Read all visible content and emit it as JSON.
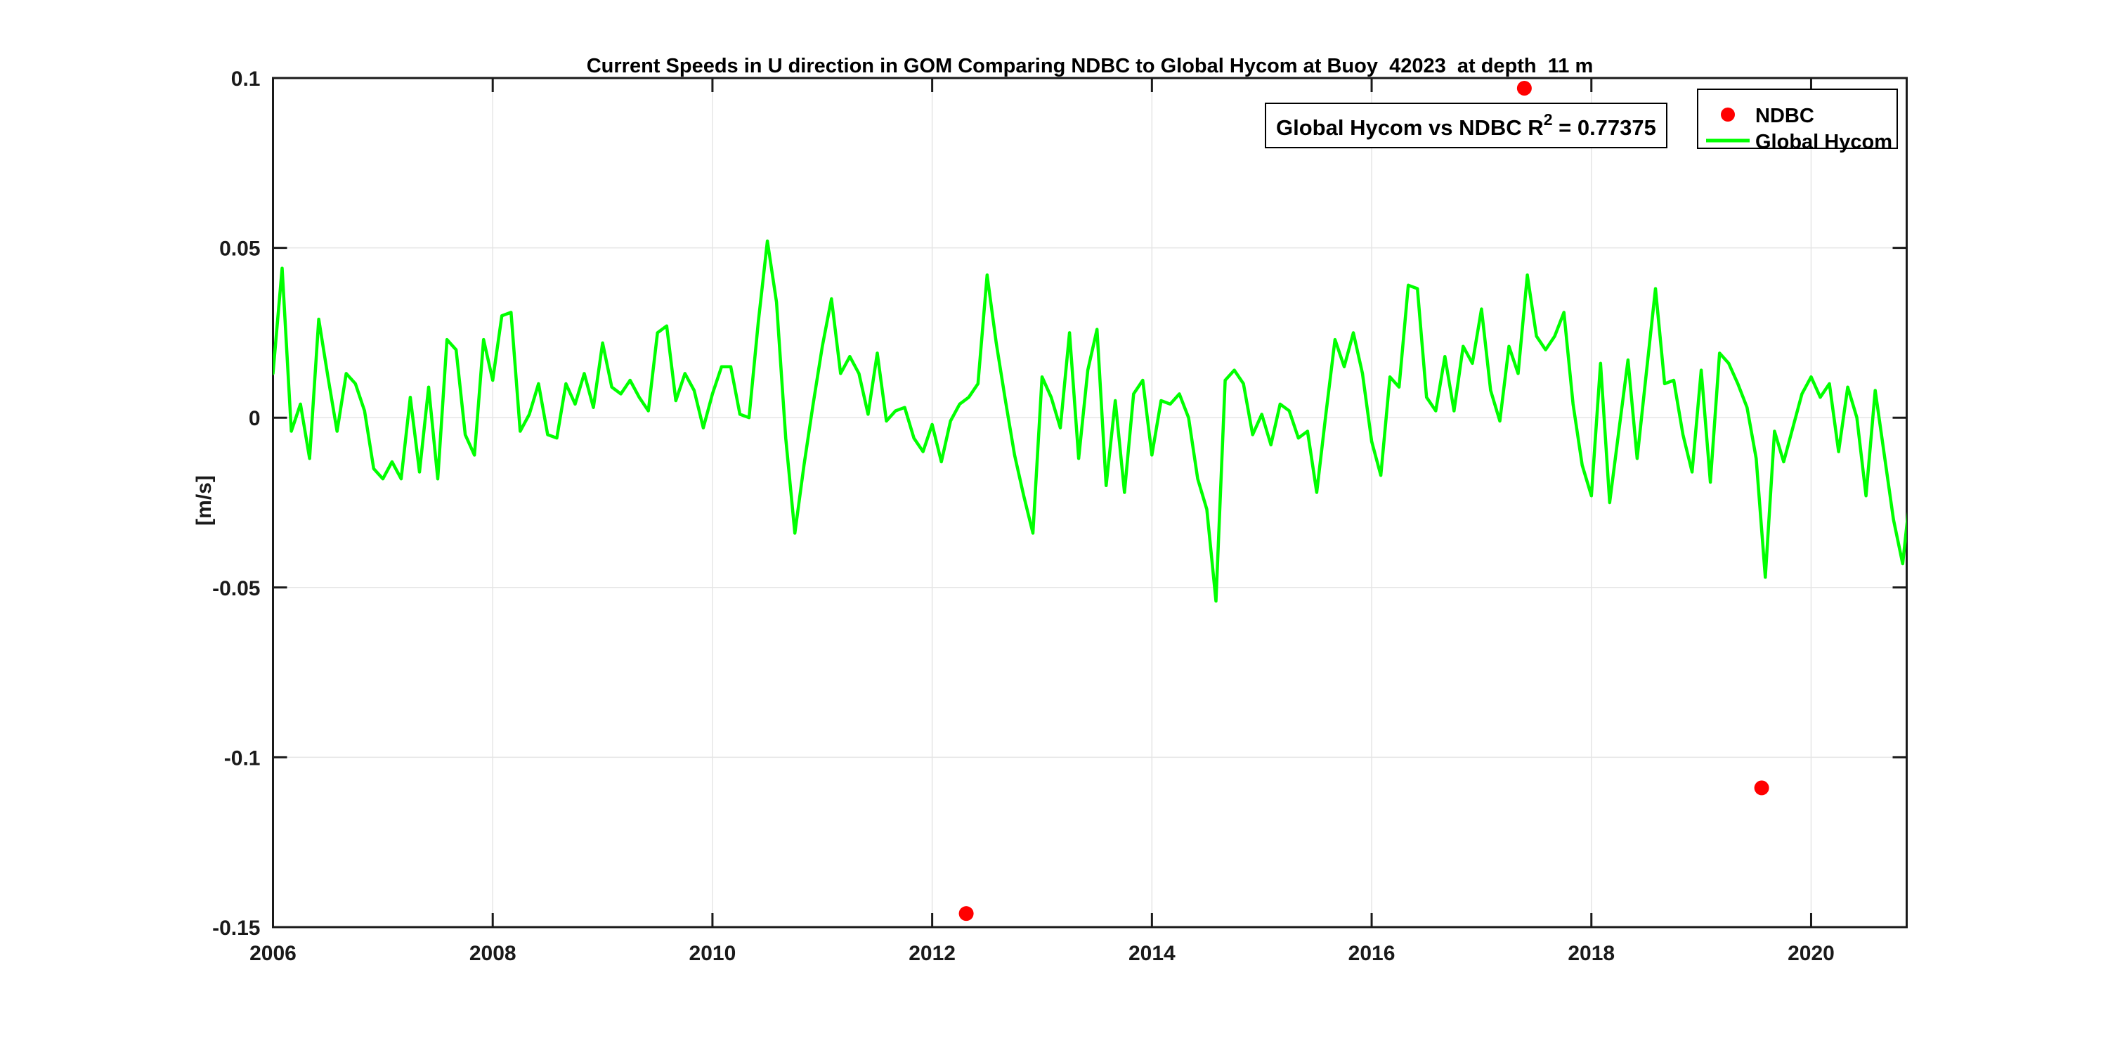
{
  "title": "Current Speeds in U direction in GOM Comparing NDBC to Global Hycom at Buoy  42023  at depth  11 m",
  "annotation": {
    "prefix": "Global Hycom vs NDBC R",
    "superscript": "2",
    "suffix": " = 0.77375"
  },
  "legend": {
    "items": [
      {
        "label": "NDBC",
        "marker": "dot",
        "color": "#ff0000"
      },
      {
        "label": "Global Hycom",
        "marker": "line",
        "color": "#00ff00"
      }
    ]
  },
  "axes": {
    "ylabel": "[m/s]",
    "background": "#ffffff",
    "axis_color": "#1a1a1a",
    "grid_color": "#e5e5e5"
  },
  "chart_data": {
    "type": "line",
    "title": "Current Speeds in U direction in GOM Comparing NDBC to Global Hycom at Buoy  42023  at depth  11 m",
    "xlabel": "",
    "ylabel": "[m/s]",
    "xlim": [
      2006,
      2020.87
    ],
    "ylim": [
      -0.15,
      0.1
    ],
    "grid": true,
    "legend_position": "top-right",
    "xticks": {
      "values": [
        2006,
        2008,
        2010,
        2012,
        2014,
        2016,
        2018,
        2020
      ],
      "labels": [
        "2006",
        "2008",
        "2010",
        "2012",
        "2014",
        "2016",
        "2018",
        "2020"
      ]
    },
    "yticks": {
      "values": [
        0.1,
        0.05,
        0,
        -0.05,
        -0.1,
        -0.15
      ],
      "labels": [
        "0.1",
        "0.05",
        "0",
        "-0.05",
        "-0.1",
        "-0.15"
      ]
    },
    "series": [
      {
        "name": "Global Hycom",
        "type": "line",
        "color": "#00ff00",
        "x_start": 2006.0,
        "x_step_years": 0.0833333,
        "cadence": "monthly, Jan 2006 - Dec 2020, units m/s",
        "values": [
          0.013,
          0.044,
          -0.004,
          0.004,
          -0.012,
          0.029,
          0.012,
          -0.004,
          0.013,
          0.01,
          0.002,
          -0.015,
          -0.018,
          -0.013,
          -0.018,
          0.006,
          -0.016,
          0.009,
          -0.018,
          0.023,
          0.02,
          -0.005,
          -0.011,
          0.023,
          0.011,
          0.03,
          0.031,
          -0.004,
          0.001,
          0.01,
          -0.005,
          -0.006,
          0.01,
          0.004,
          0.013,
          0.003,
          0.022,
          0.009,
          0.007,
          0.011,
          0.006,
          0.002,
          0.025,
          0.027,
          0.005,
          0.013,
          0.008,
          -0.003,
          0.007,
          0.015,
          0.015,
          0.001,
          0.0,
          0.028,
          0.052,
          0.034,
          -0.006,
          -0.034,
          -0.014,
          0.004,
          0.021,
          0.035,
          0.013,
          0.018,
          0.013,
          0.001,
          0.019,
          -0.001,
          0.002,
          0.003,
          -0.006,
          -0.01,
          -0.002,
          -0.013,
          -0.001,
          0.004,
          0.006,
          0.01,
          0.042,
          0.022,
          0.005,
          -0.011,
          -0.023,
          -0.034,
          0.012,
          0.006,
          -0.003,
          0.025,
          -0.012,
          0.014,
          0.026,
          -0.02,
          0.005,
          -0.022,
          0.007,
          0.011,
          -0.011,
          0.005,
          0.004,
          0.007,
          0.0,
          -0.018,
          -0.027,
          -0.054,
          0.011,
          0.014,
          0.01,
          -0.005,
          0.001,
          -0.008,
          0.004,
          0.002,
          -0.006,
          -0.004,
          -0.022,
          0.001,
          0.023,
          0.015,
          0.025,
          0.013,
          -0.007,
          -0.017,
          0.012,
          0.009,
          0.039,
          0.038,
          0.006,
          0.002,
          0.018,
          0.002,
          0.021,
          0.016,
          0.032,
          0.008,
          -0.001,
          0.021,
          0.013,
          0.042,
          0.024,
          0.02,
          0.024,
          0.031,
          0.004,
          -0.014,
          -0.023,
          0.016,
          -0.025,
          -0.004,
          0.017,
          -0.012,
          0.013,
          0.038,
          0.01,
          0.011,
          -0.005,
          -0.016,
          0.014,
          -0.019,
          0.019,
          0.016,
          0.01,
          0.003,
          -0.012,
          -0.047,
          -0.004,
          -0.013,
          -0.003,
          0.007,
          0.012,
          0.006,
          0.01,
          -0.01,
          0.009,
          0.0,
          -0.023,
          0.008,
          -0.011,
          -0.03,
          -0.043,
          -0.018
        ]
      },
      {
        "name": "NDBC",
        "type": "scatter",
        "color": "#ff0000",
        "points": [
          {
            "x": 2012.31,
            "y": -0.146
          },
          {
            "x": 2017.39,
            "y": 0.097
          },
          {
            "x": 2019.55,
            "y": -0.109
          }
        ]
      }
    ],
    "annotation": "Global Hycom vs NDBC R^2 = 0.77375"
  }
}
